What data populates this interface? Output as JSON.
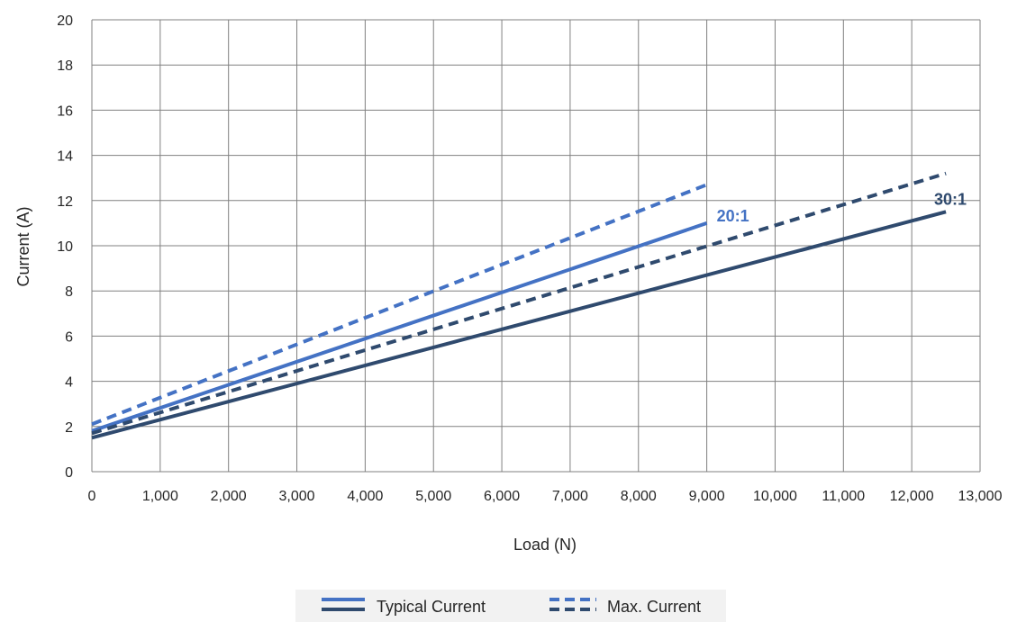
{
  "chart_data": {
    "type": "line",
    "xlabel": "Load (N)",
    "ylabel": "Current (A)",
    "xlim": [
      0,
      13000
    ],
    "ylim": [
      0,
      20
    ],
    "x_ticks": [
      0,
      1000,
      2000,
      3000,
      4000,
      5000,
      6000,
      7000,
      8000,
      9000,
      10000,
      11000,
      12000,
      13000
    ],
    "x_tick_labels": [
      "0",
      "1,000",
      "2,000",
      "3,000",
      "4,000",
      "5,000",
      "6,000",
      "7,000",
      "8,000",
      "9,000",
      "10,000",
      "11,000",
      "12,000",
      "13,000"
    ],
    "y_ticks": [
      0,
      2,
      4,
      6,
      8,
      10,
      12,
      14,
      16,
      18,
      20
    ],
    "y_tick_labels": [
      "0",
      "2",
      "4",
      "6",
      "8",
      "10",
      "12",
      "14",
      "16",
      "18",
      "20"
    ],
    "grid": true,
    "legend_position": "bottom",
    "legend": {
      "typical_label": "Typical Current",
      "max_label": "Max. Current"
    },
    "colors": {
      "ratio_20_1": "#4472c4",
      "ratio_30_1": "#2f4a6e",
      "grid": "#808080",
      "legend_bg": "#f2f2f2"
    },
    "series": [
      {
        "name": "Typical Current",
        "ratio": "20:1",
        "style": "solid",
        "color": "#4472c4",
        "x": [
          0,
          9000
        ],
        "y": [
          1.8,
          11.0
        ]
      },
      {
        "name": "Max. Current",
        "ratio": "20:1",
        "style": "dashed",
        "color": "#4472c4",
        "x": [
          0,
          9000
        ],
        "y": [
          2.1,
          12.7
        ]
      },
      {
        "name": "Typical Current",
        "ratio": "30:1",
        "style": "solid",
        "color": "#2f4a6e",
        "x": [
          0,
          12500
        ],
        "y": [
          1.5,
          11.5
        ]
      },
      {
        "name": "Max. Current",
        "ratio": "30:1",
        "style": "dashed",
        "color": "#2f4a6e",
        "x": [
          0,
          12500
        ],
        "y": [
          1.7,
          13.2
        ]
      }
    ],
    "annotations": [
      {
        "text": "20:1",
        "x": 9000,
        "y": 11.0,
        "color": "#4472c4"
      },
      {
        "text": "30:1",
        "x": 12500,
        "y": 11.5,
        "color": "#2f4a6e"
      }
    ]
  }
}
